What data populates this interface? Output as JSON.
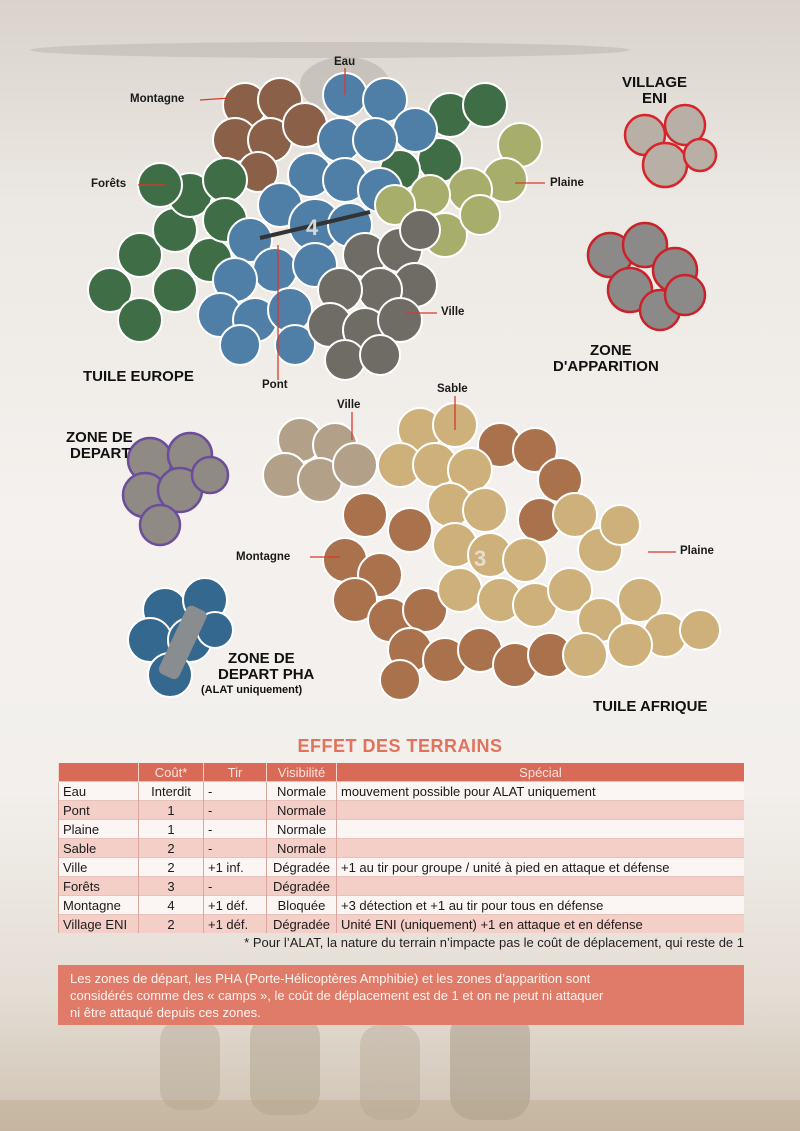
{
  "map": {
    "europe_tile": {
      "title": "TUILE EUROPE",
      "number": "4",
      "labels": {
        "eau": "Eau",
        "montagne": "Montagne",
        "forets": "Forêts",
        "plaine": "Plaine",
        "ville": "Ville",
        "pont": "Pont"
      }
    },
    "africa_tile": {
      "title": "TUILE AFRIQUE",
      "number": "3",
      "labels": {
        "ville": "Ville",
        "sable": "Sable",
        "montagne": "Montagne",
        "plaine": "Plaine"
      }
    },
    "village_eni": {
      "line1": "VILLAGE",
      "line2": "ENI"
    },
    "zone_apparition": {
      "line1": "ZONE",
      "line2": "D'APPARITION"
    },
    "zone_depart": {
      "line1": "ZONE DE",
      "line2": "DEPART"
    },
    "zone_depart_pha": {
      "line1": "ZONE DE",
      "line2": "DEPART PHA",
      "line3": "(ALAT uniquement)"
    },
    "colors": {
      "water": "#4f7fa6",
      "forest": "#3f6e46",
      "mountain": "#8a6048",
      "plain": "#a7ad6a",
      "city": "#6f6c66",
      "sand": "#cdb07a",
      "desert_mountain": "#a9714c",
      "eni_border": "#d8252b",
      "apparition_border": "#c8232a",
      "depart_border": "#6b4d9c"
    }
  },
  "effets": {
    "title": "EFFET DES TERRAINS",
    "headers": [
      "",
      "Coût*",
      "Tir",
      "Visibilité",
      "Spécial"
    ],
    "rows": [
      [
        "Eau",
        "Interdit",
        "-",
        "Normale",
        "mouvement possible pour ALAT uniquement"
      ],
      [
        "Pont",
        "1",
        "-",
        "Normale",
        ""
      ],
      [
        "Plaine",
        "1",
        "-",
        "Normale",
        ""
      ],
      [
        "Sable",
        "2",
        "-",
        "Normale",
        ""
      ],
      [
        "Ville",
        "2",
        "+1 inf.",
        "Dégradée",
        "+1 au tir pour groupe / unité à pied en attaque et défense"
      ],
      [
        "Forêts",
        "3",
        "-",
        "Dégradée",
        ""
      ],
      [
        "Montagne",
        "4",
        "+1 déf.",
        "Bloquée",
        "+3 détection et +1 au tir pour tous en défense"
      ],
      [
        "Village ENI",
        "2",
        "+1 déf.",
        "Dégradée",
        "Unité ENI (uniquement) +1 en attaque et en défense"
      ]
    ],
    "footnote": "* Pour l’ALAT, la nature du terrain n’impacte pas le coût de déplacement, qui reste de 1"
  },
  "note": {
    "line1": "Les zones de départ, les PHA (Porte-Hélicoptères Amphibie) et les zones d’apparition sont",
    "line2": "considérés comme des « camps », le coût de déplacement est de 1 et on ne peut ni attaquer",
    "line3": "ni être attaqué depuis ces zones."
  }
}
